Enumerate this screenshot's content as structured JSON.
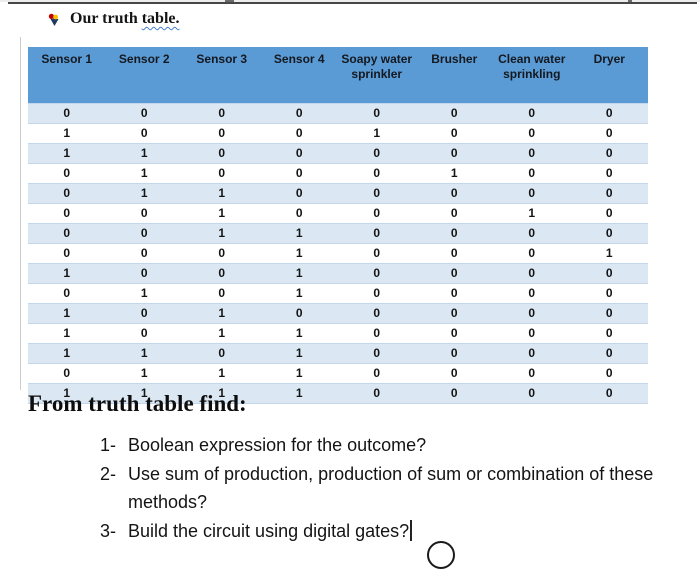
{
  "heading": {
    "prefix": "Our truth ",
    "underlined_word": "table."
  },
  "table": {
    "headers": [
      "Sensor 1",
      "Sensor 2",
      "Sensor 3",
      "Sensor 4",
      "Soapy water sprinkler",
      "Brusher",
      "Clean water sprinkling",
      "Dryer"
    ],
    "rows": [
      [
        "0",
        "0",
        "0",
        "0",
        "0",
        "0",
        "0",
        "0"
      ],
      [
        "1",
        "0",
        "0",
        "0",
        "1",
        "0",
        "0",
        "0"
      ],
      [
        "1",
        "1",
        "0",
        "0",
        "0",
        "0",
        "0",
        "0"
      ],
      [
        "0",
        "1",
        "0",
        "0",
        "0",
        "1",
        "0",
        "0"
      ],
      [
        "0",
        "1",
        "1",
        "0",
        "0",
        "0",
        "0",
        "0"
      ],
      [
        "0",
        "0",
        "1",
        "0",
        "0",
        "0",
        "1",
        "0"
      ],
      [
        "0",
        "0",
        "1",
        "1",
        "0",
        "0",
        "0",
        "0"
      ],
      [
        "0",
        "0",
        "0",
        "1",
        "0",
        "0",
        "0",
        "1"
      ],
      [
        "1",
        "0",
        "0",
        "1",
        "0",
        "0",
        "0",
        "0"
      ],
      [
        "0",
        "1",
        "0",
        "1",
        "0",
        "0",
        "0",
        "0"
      ],
      [
        "1",
        "0",
        "1",
        "0",
        "0",
        "0",
        "0",
        "0"
      ],
      [
        "1",
        "0",
        "1",
        "1",
        "0",
        "0",
        "0",
        "0"
      ],
      [
        "1",
        "1",
        "0",
        "1",
        "0",
        "0",
        "0",
        "0"
      ],
      [
        "0",
        "1",
        "1",
        "1",
        "0",
        "0",
        "0",
        "0"
      ],
      [
        "1",
        "1",
        "1",
        "1",
        "0",
        "0",
        "0",
        "0"
      ]
    ]
  },
  "section": {
    "title": "From truth table find:",
    "questions": [
      {
        "num": "1-",
        "text": "Boolean expression for the outcome?"
      },
      {
        "num": "2-",
        "text": "Use sum of production, production of sum or combination of these methods?"
      },
      {
        "num": "3-",
        "text": "Build the circuit using digital gates?"
      }
    ]
  },
  "colors": {
    "header_bg": "#5b9bd5",
    "band_bg": "#dbe8f4",
    "band_border": "#c3d6ea",
    "wavy_underline": "#4a7ec9"
  }
}
